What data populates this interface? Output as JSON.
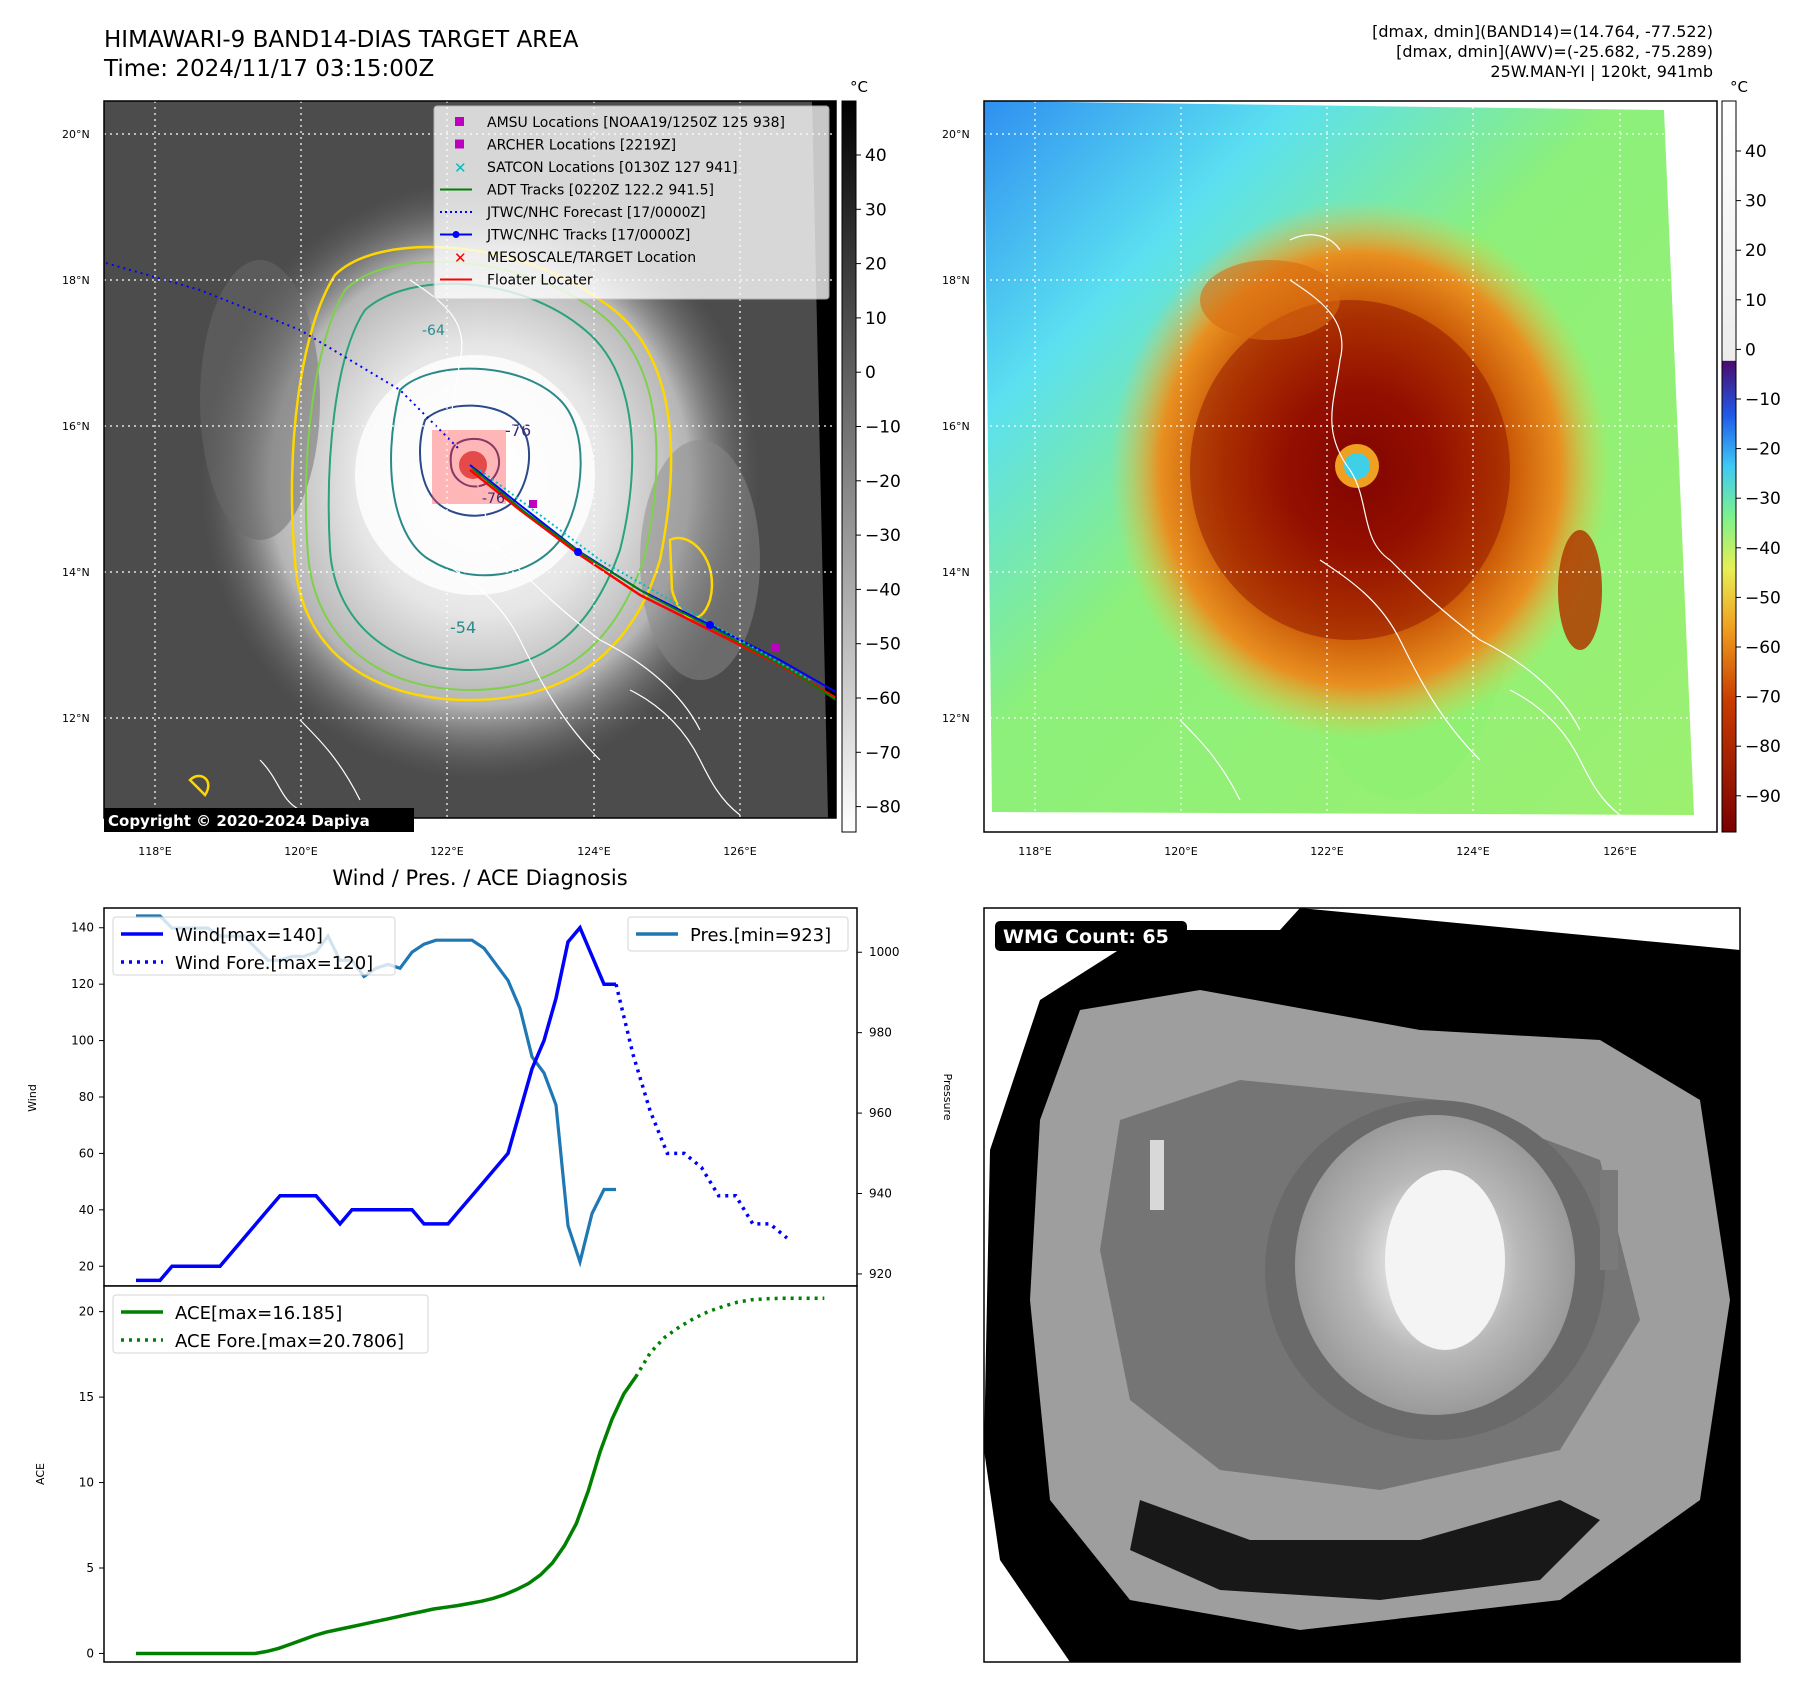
{
  "header": {
    "title_line1": "HIMAWARI-9 BAND14-DIAS TARGET AREA",
    "title_line2": "Time: 2024/11/17 03:15:00Z",
    "info_line1": "[dmax, dmin](BAND14)=(14.764, -77.522)",
    "info_line2": "[dmax, dmin](AWV)=(-25.682, -75.289)",
    "info_line3": "25W.MAN-YI | 120kt, 941mb"
  },
  "ir_map": {
    "lon_labels": [
      "118°E",
      "120°E",
      "122°E",
      "124°E",
      "126°E"
    ],
    "lat_labels": [
      "20°N",
      "18°N",
      "16°N",
      "14°N",
      "12°N"
    ],
    "colorbar_unit": "°C",
    "colorbar_ticks": [
      "40",
      "30",
      "20",
      "10",
      "0",
      "−10",
      "−20",
      "−30",
      "−40",
      "−50",
      "−60",
      "−70",
      "−80"
    ],
    "copyright": "Copyright © 2020-2024 Dapiya",
    "legend": [
      {
        "label": "AMSU Locations [NOAA19/1250Z 125 938]",
        "color": "#c000c0",
        "symbol": "square"
      },
      {
        "label": "ARCHER Locations [2219Z]",
        "color": "#c000c0",
        "symbol": "square"
      },
      {
        "label": "SATCON Locations [0130Z 127 941]",
        "color": "#00bfbf",
        "symbol": "x"
      },
      {
        "label": "ADT Tracks [0220Z 122.2 941.5]",
        "color": "#008000",
        "symbol": "line"
      },
      {
        "label": "JTWC/NHC Forecast [17/0000Z]",
        "color": "#0000ff",
        "symbol": "dotted"
      },
      {
        "label": "JTWC/NHC Tracks [17/0000Z]",
        "color": "#0000ff",
        "symbol": "line-dot"
      },
      {
        "label": "MESOSCALE/TARGET Location",
        "color": "#ff0000",
        "symbol": "x"
      },
      {
        "label": "Floater Locater",
        "color": "#ff0000",
        "symbol": "line"
      }
    ],
    "contour_labels": [
      "-76",
      "-76",
      "-64",
      "-54"
    ]
  },
  "awv_map": {
    "lon_labels": [
      "118°E",
      "120°E",
      "122°E",
      "124°E",
      "126°E"
    ],
    "lat_labels": [
      "20°N",
      "18°N",
      "16°N",
      "14°N",
      "12°N"
    ],
    "colorbar_unit": "°C",
    "colorbar_ticks": [
      "40",
      "30",
      "20",
      "10",
      "0",
      "−10",
      "−20",
      "−30",
      "−40",
      "−50",
      "−60",
      "−70",
      "−80",
      "−90"
    ]
  },
  "wmg": {
    "count_label": "WMG Count: 65"
  },
  "chart_data": [
    {
      "type": "line",
      "title": "Wind / Pres. / ACE Diagnosis",
      "ylabel": "Wind",
      "y2label": "Pressure",
      "ylim": [
        13,
        147
      ],
      "y2lim": [
        917,
        1011
      ],
      "yticks": [
        20,
        40,
        60,
        80,
        100,
        120,
        140
      ],
      "y2ticks": [
        920,
        940,
        960,
        980,
        1000
      ],
      "legend_left": [
        "Wind[max=140]",
        "Wind Fore.[max=120]"
      ],
      "legend_right": [
        "Pres.[min=923]"
      ],
      "series": [
        {
          "name": "Wind[max=140]",
          "color": "#0000ff",
          "style": "solid",
          "axis": "left",
          "values": [
            15,
            15,
            15,
            20,
            20,
            20,
            20,
            20,
            25,
            30,
            35,
            40,
            45,
            45,
            45,
            45,
            40,
            35,
            40,
            40,
            40,
            40,
            40,
            40,
            35,
            35,
            35,
            40,
            45,
            50,
            55,
            60,
            75,
            90,
            100,
            115,
            135,
            140,
            130,
            120,
            120
          ]
        },
        {
          "name": "Wind Fore.[max=120]",
          "color": "#0000ff",
          "style": "dotted",
          "axis": "left",
          "values": [
            120,
            95,
            75,
            60,
            60,
            55,
            45,
            45,
            35,
            35,
            30
          ]
        },
        {
          "name": "Pres.[min=923]",
          "color": "#1f77b4",
          "style": "solid",
          "axis": "right",
          "values": [
            1009,
            1009,
            1009,
            1006,
            1006,
            1006,
            1006,
            1004,
            1004,
            1004,
            1001,
            998,
            998,
            999,
            999,
            1000,
            1004,
            998,
            998,
            994,
            996,
            997,
            996,
            1000,
            1002,
            1003,
            1003,
            1003,
            1003,
            1001,
            997,
            993,
            986,
            974,
            970,
            962,
            932,
            923,
            935,
            941,
            941
          ]
        }
      ]
    },
    {
      "type": "line",
      "ylabel": "ACE",
      "ylim": [
        -0.5,
        21.5
      ],
      "yticks": [
        0,
        5,
        10,
        15,
        20
      ],
      "legend": [
        "ACE[max=16.185]",
        "ACE Fore.[max=20.7806]"
      ],
      "series": [
        {
          "name": "ACE[max=16.185]",
          "color": "#008000",
          "style": "solid",
          "values": [
            0,
            0,
            0,
            0,
            0,
            0,
            0,
            0,
            0,
            0,
            0,
            0.12,
            0.3,
            0.55,
            0.8,
            1.05,
            1.25,
            1.4,
            1.55,
            1.7,
            1.85,
            2.0,
            2.15,
            2.3,
            2.45,
            2.6,
            2.7,
            2.8,
            2.92,
            3.05,
            3.22,
            3.45,
            3.75,
            4.1,
            4.6,
            5.3,
            6.3,
            7.6,
            9.5,
            11.8,
            13.7,
            15.2,
            16.185
          ]
        },
        {
          "name": "ACE Fore.[max=20.7806]",
          "color": "#008000",
          "style": "dotted",
          "values": [
            16.185,
            17.6,
            18.5,
            19.1,
            19.6,
            20.0,
            20.3,
            20.55,
            20.7,
            20.75,
            20.78,
            20.78,
            20.78,
            20.78
          ]
        }
      ]
    }
  ]
}
